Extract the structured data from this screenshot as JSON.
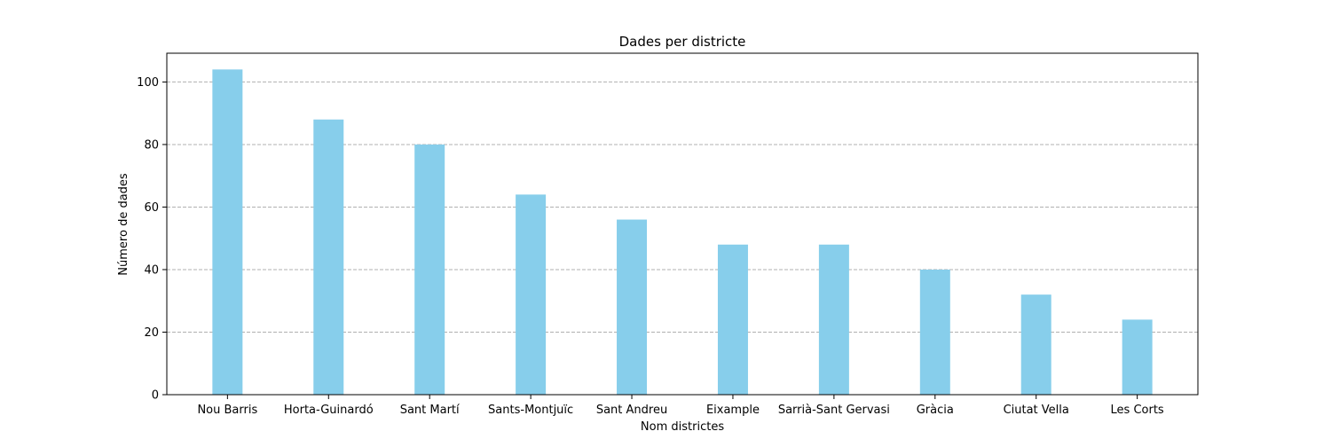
{
  "chart_data": {
    "type": "bar",
    "title": "Dades per districte",
    "xlabel": "Nom districtes",
    "ylabel": "Número de dades",
    "categories": [
      "Nou Barris",
      "Horta-Guinardó",
      "Sant Martí",
      "Sants-Montjuïc",
      "Sant Andreu",
      "Eixample",
      "Sarrià-Sant Gervasi",
      "Gràcia",
      "Ciutat Vella",
      "Les Corts"
    ],
    "values": [
      104,
      88,
      80,
      64,
      56,
      48,
      48,
      40,
      32,
      24
    ],
    "ylim": [
      0,
      109.2
    ],
    "yticks": [
      0,
      20,
      40,
      60,
      80,
      100
    ],
    "grid": "y-dashed",
    "bar_color": "#87CEEB",
    "grid_color": "#b0b0b0"
  }
}
